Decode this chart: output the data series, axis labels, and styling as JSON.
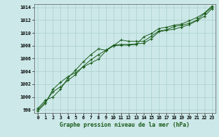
{
  "title": "Graphe pression niveau de la mer (hPa)",
  "background_color": "#cce8e8",
  "grid_color": "#aacece",
  "line_color": "#1a5c1a",
  "x_labels": [
    "0",
    "1",
    "2",
    "3",
    "4",
    "5",
    "6",
    "7",
    "8",
    "9",
    "10",
    "11",
    "12",
    "13",
    "14",
    "15",
    "16",
    "17",
    "18",
    "19",
    "20",
    "21",
    "22",
    "23"
  ],
  "x_values": [
    0,
    1,
    2,
    3,
    4,
    5,
    6,
    7,
    8,
    9,
    10,
    11,
    12,
    13,
    14,
    15,
    16,
    17,
    18,
    19,
    20,
    21,
    22,
    23
  ],
  "ylim": [
    997.5,
    1014.5
  ],
  "yticks": [
    998,
    1000,
    1002,
    1004,
    1006,
    1008,
    1010,
    1012,
    1014
  ],
  "line1": [
    998.2,
    999.5,
    1000.0,
    1001.2,
    1003.0,
    1004.2,
    1005.5,
    1006.6,
    1007.5,
    1007.3,
    1008.0,
    1008.9,
    1008.7,
    1008.7,
    1008.7,
    1009.5,
    1010.3,
    1010.5,
    1011.0,
    1011.2,
    1011.5,
    1012.0,
    1013.0,
    1014.0
  ],
  "line2": [
    998.0,
    999.2,
    1000.8,
    1001.6,
    1002.6,
    1003.5,
    1004.8,
    1005.8,
    1006.6,
    1007.3,
    1008.1,
    1008.2,
    1008.2,
    1008.3,
    1008.4,
    1009.1,
    1010.2,
    1010.4,
    1010.6,
    1010.9,
    1011.3,
    1011.9,
    1012.6,
    1013.8
  ],
  "line3": [
    997.8,
    999.0,
    1001.2,
    1002.3,
    1003.2,
    1003.8,
    1004.7,
    1005.3,
    1005.9,
    1007.2,
    1008.0,
    1008.1,
    1008.1,
    1008.2,
    1009.4,
    1009.9,
    1010.7,
    1010.9,
    1011.2,
    1011.4,
    1011.9,
    1012.4,
    1013.1,
    1014.2
  ]
}
